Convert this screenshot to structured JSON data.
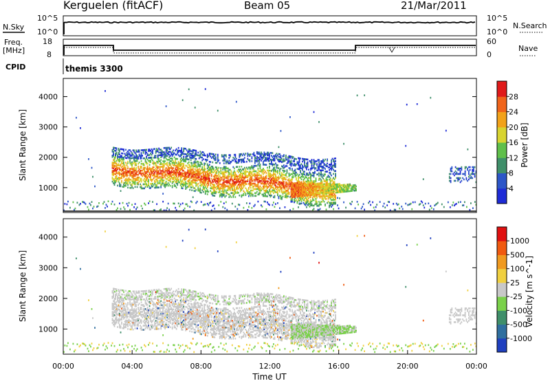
{
  "header": {
    "station": "Kerguelen (fitACF)",
    "beam": "Beam 05",
    "date": "21/Mar/2011"
  },
  "panels": {
    "nsky_label": "N.Sky",
    "nsearch_label": "N.Search",
    "freq_label_1": "Freq.",
    "freq_label_2": "[MHz]",
    "nave_label": "Nave",
    "cpid_label": "CPID",
    "cpid_value": "themis 3300",
    "nsky_ticks": [
      "10^5",
      "10^0"
    ],
    "nsearch_ticks": [
      "10^5",
      "10^0"
    ],
    "freq_ticks": [
      "18",
      "8"
    ],
    "nave_ticks": [
      "60",
      "0"
    ]
  },
  "chart_data": {
    "type": "heatmap",
    "x_label": "Time UT",
    "x_ticks": [
      "00:00",
      "04:00",
      "08:00",
      "12:00",
      "16:00",
      "20:00",
      "00:00"
    ],
    "x_range_hours": [
      0,
      24
    ],
    "y_label": "Slant Range [km]",
    "y_ticks": [
      1000,
      2000,
      3000,
      4000
    ],
    "y_range_km": [
      180,
      4600
    ],
    "power": {
      "colorbar_label": "Power [dB]",
      "colorbar_ticks": [
        4,
        8,
        12,
        16,
        20,
        24,
        28
      ],
      "colors": [
        "#1e2bd6",
        "#2c56c8",
        "#3f8f6a",
        "#5fbf4a",
        "#d8d430",
        "#f2a21a",
        "#f0641a",
        "#e01a1a"
      ]
    },
    "velocity": {
      "colorbar_label": "Velocity [m s^-1]",
      "colorbar_ticks": [
        1000,
        500,
        100,
        25,
        -25,
        -100,
        -500,
        -1000
      ],
      "colors": [
        "#1f3fbf",
        "#2f6f9f",
        "#3f8f6a",
        "#7ad14a",
        "#c8c8c8",
        "#f0d040",
        "#f09a20",
        "#f05a10",
        "#e01010"
      ]
    }
  }
}
